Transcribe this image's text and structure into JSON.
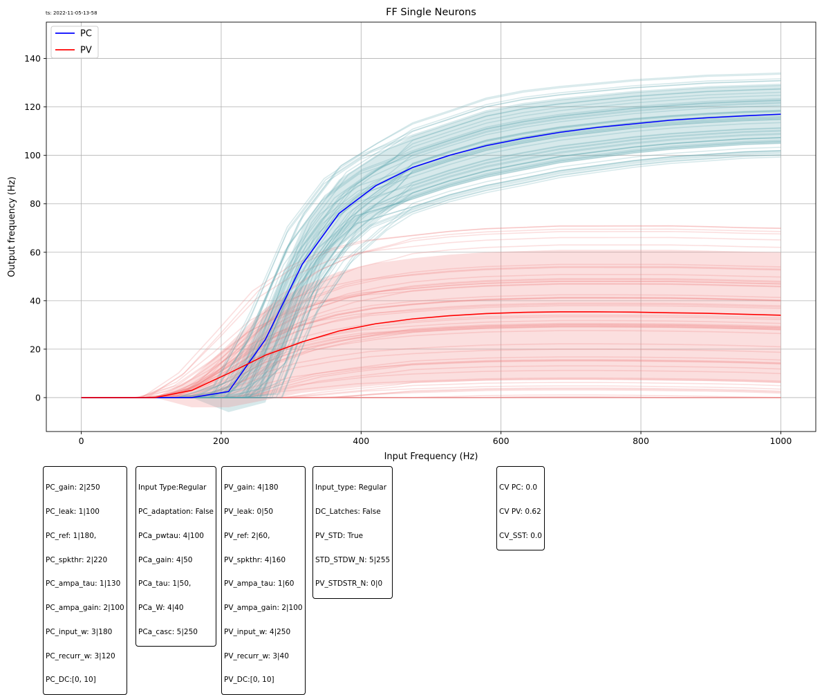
{
  "timestamp": "ts: 2022-11-05-13-58",
  "chart_data": {
    "type": "line",
    "title": "FF Single Neurons",
    "xlabel": "Input Frequency (Hz)",
    "ylabel": "Output frequency (Hz)",
    "xlim": [
      -50,
      1050
    ],
    "ylim": [
      -14,
      155
    ],
    "xticks": [
      0,
      200,
      400,
      600,
      800,
      1000
    ],
    "yticks": [
      0,
      20,
      40,
      60,
      80,
      100,
      120,
      140
    ],
    "grid": true,
    "legend_position": "top-left",
    "x": [
      0,
      52.6,
      105.3,
      157.9,
      210.5,
      263.2,
      315.8,
      368.4,
      421.1,
      473.7,
      526.3,
      578.9,
      631.6,
      684.2,
      736.8,
      789.5,
      842.1,
      894.7,
      947.4,
      1000
    ],
    "series": [
      {
        "name": "PC",
        "color": "#0000ff",
        "values": [
          0,
          0,
          0,
          0,
          2.5,
          24,
          55,
          76,
          87.5,
          95,
          100,
          104,
          107,
          109.5,
          111.5,
          113,
          114.5,
          115.5,
          116.3,
          117
        ]
      },
      {
        "name": "PV",
        "color": "#ff0000",
        "values": [
          0,
          0,
          0,
          3,
          10,
          17.5,
          23,
          27.5,
          30.5,
          32.5,
          33.8,
          34.7,
          35.2,
          35.4,
          35.4,
          35.3,
          35.0,
          34.8,
          34.4,
          34
        ]
      }
    ],
    "bands": [
      {
        "of": "PC",
        "color": "#5fa8b0",
        "upper": [
          0,
          0,
          0,
          0,
          5,
          35,
          70,
          90,
          100,
          108,
          113,
          118,
          121,
          123,
          124.5,
          126,
          127,
          128,
          128.5,
          129
        ],
        "lower": [
          0,
          0,
          0,
          0,
          -6,
          -2,
          40,
          62,
          75,
          82,
          87,
          91,
          94,
          97,
          99,
          101,
          102.5,
          103.5,
          104.5,
          105
        ]
      },
      {
        "of": "PV",
        "color": "#f08080",
        "upper": [
          0,
          0,
          0,
          8,
          22,
          37,
          46,
          52,
          55.5,
          57.5,
          59,
          60,
          60.5,
          61,
          61,
          61,
          61,
          60.7,
          60.3,
          60
        ],
        "lower": [
          0,
          0,
          0,
          -4,
          -4,
          -1,
          2,
          3.5,
          5,
          6,
          6.5,
          7,
          7.2,
          7.3,
          7.3,
          7.2,
          7,
          6.8,
          6.5,
          6
        ]
      }
    ]
  },
  "info_boxes": [
    {
      "lines": [
        "PC_gain: 2|250",
        "PC_leak: 1|100",
        "PC_ref: 1|180,",
        "PC_spkthr: 2|220",
        "PC_ampa_tau: 1|130",
        "PC_ampa_gain: 2|100",
        "PC_input_w: 3|180",
        "PC_recurr_w: 3|120",
        "PC_DC:[0, 10]"
      ]
    },
    {
      "lines": [
        "Input Type:Regular",
        "PC_adaptation: False",
        "PCa_pwtau: 4|100",
        "PCa_gain: 4|50",
        "PCa_tau: 1|50,",
        "PCa_W: 4|40",
        "PCa_casc: 5|250"
      ]
    },
    {
      "lines": [
        "PV_gain: 4|180",
        "PV_leak: 0|50",
        "PV_ref: 2|60,",
        "PV_spkthr: 4|160",
        "PV_ampa_tau: 1|60",
        "PV_ampa_gain: 2|100",
        "PV_input_w: 4|250",
        "PV_recurr_w: 3|40",
        "PV_DC:[0, 10]"
      ]
    },
    {
      "lines": [
        "Input_type: Regular",
        "DC_Latches: False",
        "PV_STD: True",
        "STD_STDW_N: 5|255",
        "PV_STDSTR_N: 0|0"
      ]
    },
    {
      "lines": [
        "CV PC: 0.0",
        "CV PV: 0.62",
        "CV_SST: 0.0"
      ]
    }
  ]
}
